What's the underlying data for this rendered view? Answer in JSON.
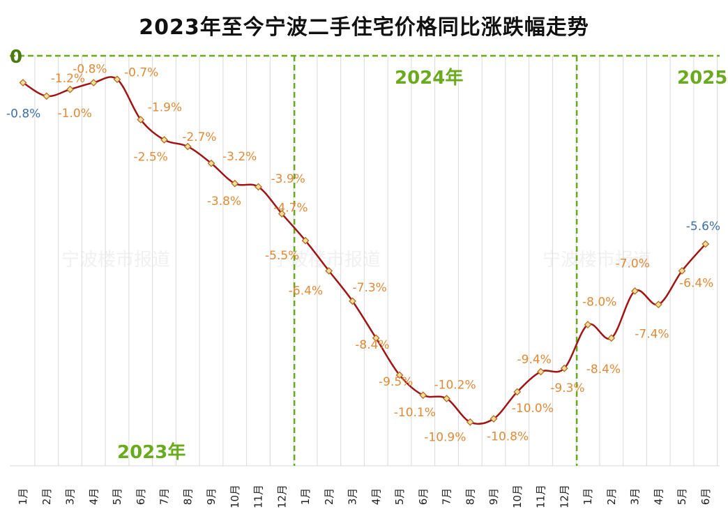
{
  "chart_data": {
    "type": "line",
    "title": "2023年至今宁波二手住宅价格同比涨跌幅走势",
    "zero_label": "0",
    "ylim": [
      -12.2,
      0
    ],
    "grid": "vertical",
    "watermark": "宁波楼市报道",
    "years": [
      {
        "label": "2023年",
        "start_index": 0
      },
      {
        "label": "2024年",
        "start_index": 12
      },
      {
        "label": "2025年",
        "start_index": 24
      }
    ],
    "categories": [
      "1月",
      "2月",
      "3月",
      "4月",
      "5月",
      "6月",
      "7月",
      "8月",
      "9月",
      "10月",
      "11月",
      "12月",
      "1月",
      "2月",
      "3月",
      "4月",
      "5月",
      "6月",
      "7月",
      "8月",
      "9月",
      "10月",
      "11月",
      "12月",
      "1月",
      "2月",
      "3月",
      "4月",
      "5月",
      "6月"
    ],
    "series": [
      {
        "values": [
          -0.8,
          -1.2,
          -1.0,
          -0.8,
          -0.7,
          -1.9,
          -2.5,
          -2.7,
          -3.2,
          -3.8,
          -3.9,
          -4.7,
          -5.5,
          -6.4,
          -7.3,
          -8.4,
          -9.5,
          -10.1,
          -10.2,
          -10.9,
          -10.8,
          -10.0,
          -9.4,
          -9.3,
          -8.0,
          -8.4,
          -7.0,
          -7.4,
          -6.4,
          -5.6
        ],
        "labels": [
          "-0.8%",
          "-1.2%",
          "-1.0%",
          "-0.8%",
          "-0.7%",
          "-1.9%",
          "-2.5%",
          "-2.7%",
          "-3.2%",
          "-3.8%",
          "-3.9%",
          "-4.7%",
          "-5.5%",
          "-6.4%",
          "-7.3%",
          "-8.4%",
          "-9.5%",
          "-10.1%",
          "-10.2%",
          "-10.9%",
          "-10.8%",
          "-10.0%",
          "-9.4%",
          "-9.3%",
          "-8.0%",
          "-8.4%",
          "-7.0%",
          "-7.4%",
          "-6.4%",
          "-5.6%"
        ]
      }
    ],
    "colors": {
      "line": "#a01414",
      "marker_fill": "#f5dca0",
      "marker_stroke": "#b07020",
      "label": "#e08a38",
      "label_highlight": "#3f6fa8",
      "year_line": "#6aaa1e",
      "grid": "#d9d9d9"
    }
  }
}
